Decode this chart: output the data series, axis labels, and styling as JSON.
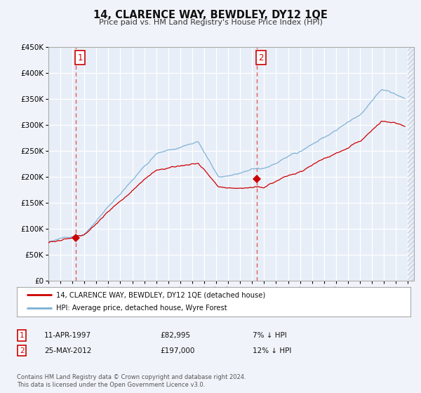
{
  "title": "14, CLARENCE WAY, BEWDLEY, DY12 1QE",
  "subtitle": "Price paid vs. HM Land Registry's House Price Index (HPI)",
  "ylim": [
    0,
    450000
  ],
  "xlim_start": 1995.0,
  "xlim_end": 2025.5,
  "bg_color": "#f0f4fa",
  "plot_bg_color": "#e8eef8",
  "grid_color": "#ffffff",
  "red_color": "#cc0000",
  "blue_color": "#7aafd4",
  "hatch_color": "#c8d0e0",
  "vline_color": "#dd4444",
  "marker1_date": 1997.28,
  "marker1_value": 82995,
  "marker2_date": 2012.39,
  "marker2_value": 197000,
  "vline1_x": 1997.28,
  "vline2_x": 2012.39,
  "legend_line1": "14, CLARENCE WAY, BEWDLEY, DY12 1QE (detached house)",
  "legend_line2": "HPI: Average price, detached house, Wyre Forest",
  "ann1_date": "11-APR-1997",
  "ann1_price": "£82,995",
  "ann1_hpi": "7% ↓ HPI",
  "ann2_date": "25-MAY-2012",
  "ann2_price": "£197,000",
  "ann2_hpi": "12% ↓ HPI",
  "footnote1": "Contains HM Land Registry data © Crown copyright and database right 2024.",
  "footnote2": "This data is licensed under the Open Government Licence v3.0."
}
